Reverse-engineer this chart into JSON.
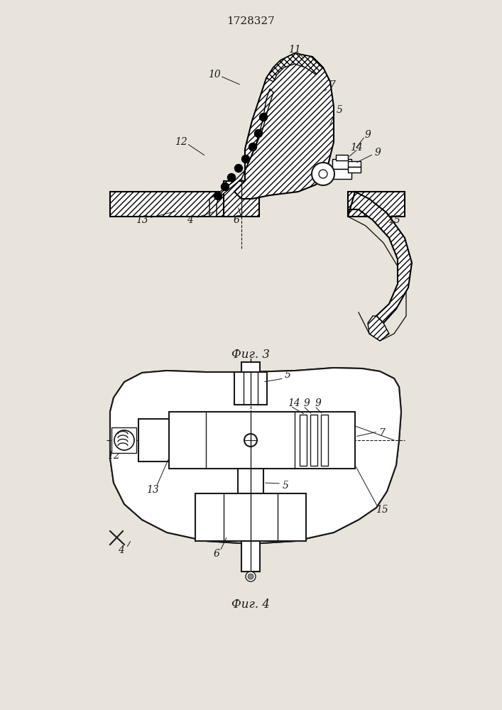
{
  "title": "1728327",
  "fig3_label": "Фиг. 3",
  "fig4_label": "Фиг. 4",
  "bg_color": "#e8e4dc",
  "line_color": "#1a1a1a",
  "label_fontsize": 10,
  "title_fontsize": 11
}
